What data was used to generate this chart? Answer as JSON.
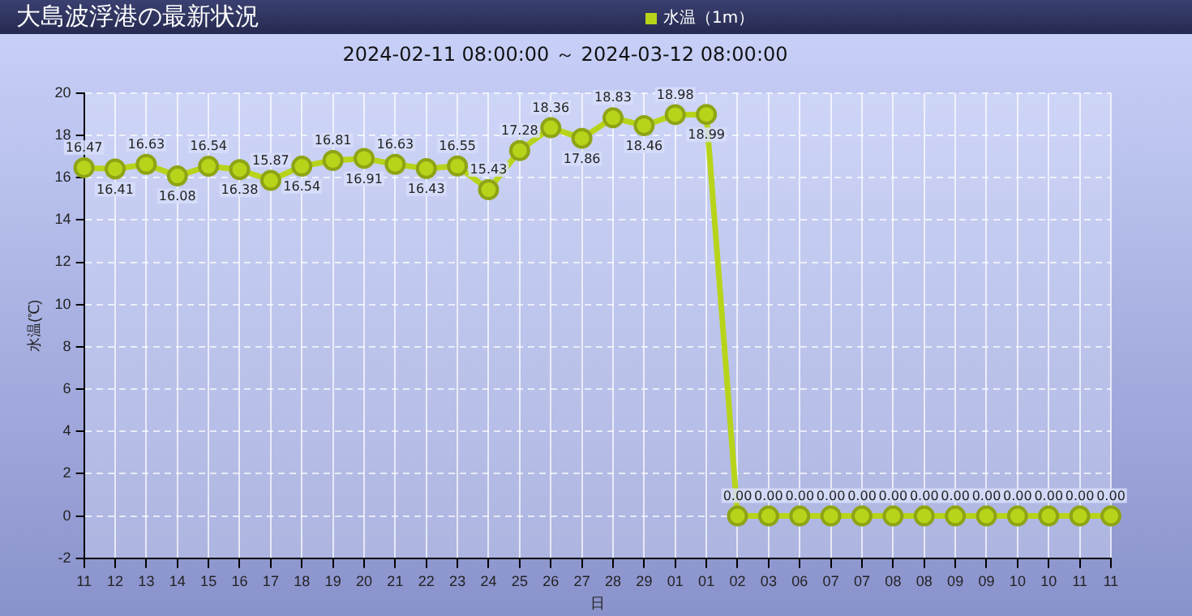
{
  "chart_data": {
    "type": "line",
    "title": "大島波浮港の最新状況",
    "subtitle": "2024-02-11 08:00:00 ～ 2024-03-12 08:00:00",
    "xlabel": "日",
    "ylabel": "水温(℃)",
    "categories": [
      "11",
      "12",
      "13",
      "14",
      "15",
      "16",
      "17",
      "18",
      "19",
      "20",
      "21",
      "22",
      "23",
      "24",
      "25",
      "26",
      "27",
      "28",
      "29",
      "01",
      "01",
      "02",
      "03",
      "06",
      "07",
      "07",
      "08",
      "08",
      "09",
      "09",
      "10",
      "10",
      "11",
      "11"
    ],
    "series": [
      {
        "name": "水温（1m）",
        "color": "#b8d41a",
        "values": [
          16.47,
          16.41,
          16.63,
          16.08,
          16.54,
          16.38,
          15.87,
          16.54,
          16.81,
          16.91,
          16.63,
          16.43,
          16.55,
          15.43,
          17.28,
          18.36,
          17.86,
          18.83,
          18.46,
          18.98,
          18.99,
          0,
          0,
          0,
          0,
          0,
          0,
          0,
          0,
          0,
          0,
          0,
          0,
          0
        ],
        "value_labels": [
          "16.47",
          "16.41",
          "16.63",
          "16.08",
          "16.54",
          "16.38",
          "15.87",
          "16.54",
          "16.81",
          "16.91",
          "16.63",
          "16.43",
          "16.55",
          "15.43",
          "17.28",
          "18.36",
          "17.86",
          "18.83",
          "18.46",
          "18.98",
          "18.99",
          "0.00",
          "0.00",
          "0.00",
          "0.00",
          "0.00",
          "0.00",
          "0.00",
          "0.00",
          "0.00",
          "0.00",
          "0.00",
          "0.00",
          "0.00"
        ]
      }
    ],
    "ylim": [
      -2,
      20
    ],
    "yticks": [
      -2,
      0,
      2,
      4,
      6,
      8,
      10,
      12,
      14,
      16,
      18,
      20
    ],
    "grid": true,
    "legend": "top",
    "marker": "circle",
    "line_style": "solid"
  }
}
